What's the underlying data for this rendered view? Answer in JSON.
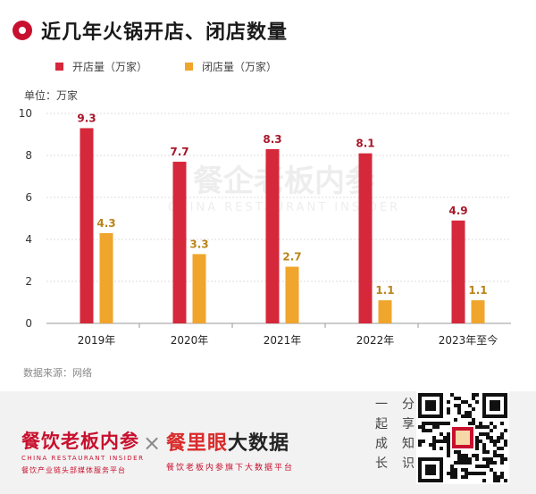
{
  "title": "近几年火锅开店、闭店数量",
  "unit_label": "单位：万家",
  "source": "数据来源：网络",
  "colors": {
    "open": "#d6283b",
    "close": "#f0a52c",
    "grid": "#dddddd",
    "label_open": "#a8162a",
    "label_close": "#b9851a"
  },
  "chart_data": {
    "type": "bar",
    "categories": [
      "2019年",
      "2020年",
      "2021年",
      "2022年",
      "2023年至今"
    ],
    "series": [
      {
        "name": "开店量（万家）",
        "values": [
          9.3,
          7.7,
          8.3,
          8.1,
          4.9
        ]
      },
      {
        "name": "闭店量（万家）",
        "values": [
          4.3,
          3.3,
          2.7,
          1.1,
          1.1
        ]
      }
    ],
    "ylim": [
      0,
      10
    ],
    "yticks": [
      "0",
      "2",
      "4",
      "6",
      "8",
      "10"
    ],
    "grid": true,
    "legend": "top-left",
    "watermark": {
      "main": "餐企老板内参",
      "en": "CHINA RESTAURANT INSIDER"
    }
  },
  "footer": {
    "brand1": {
      "main": "餐饮老板内参",
      "en": "CHINA RESTAURANT INSIDER",
      "sub": "餐饮产业链头部媒体服务平台"
    },
    "cross": "×",
    "brand2": {
      "main_red": "餐里眼",
      "main_dark": "大数据",
      "sub": "餐饮老板内参旗下大数据平台"
    },
    "cta_lines": [
      [
        "一",
        "分"
      ],
      [
        "起",
        "享"
      ],
      [
        "成",
        "知"
      ],
      [
        "长",
        "识"
      ]
    ]
  }
}
